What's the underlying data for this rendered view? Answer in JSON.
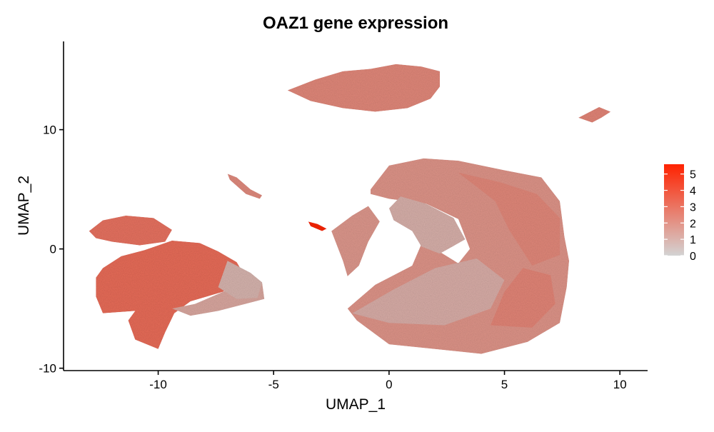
{
  "chart_data": {
    "type": "scatter",
    "title": "OAZ1 gene expression",
    "xlabel": "UMAP_1",
    "ylabel": "UMAP_2",
    "xlim": [
      -14.1,
      11.2
    ],
    "ylim": [
      -10.2,
      17.4
    ],
    "x_ticks": [
      -10,
      -5,
      0,
      5,
      10
    ],
    "x_tick_labels": [
      "-10",
      "-5",
      "0",
      "5",
      "10"
    ],
    "y_ticks": [
      -10,
      0,
      10
    ],
    "y_tick_labels": [
      "-10",
      "0",
      "10"
    ],
    "grid": false,
    "color_scale": {
      "min": 0,
      "max": 5.6,
      "low_color": "#d3d3d3",
      "high_color": "#ff2200",
      "ticks": [
        0,
        1,
        2,
        3,
        4,
        5
      ],
      "tick_labels": [
        "0",
        "1",
        "2",
        "3",
        "4",
        "5"
      ],
      "placement": "right"
    },
    "clusters": [
      {
        "shape": [
          [
            -4.4,
            13.3
          ],
          [
            -3.2,
            14.2
          ],
          [
            -2.0,
            14.9
          ],
          [
            -0.8,
            15.1
          ],
          [
            0.3,
            15.5
          ],
          [
            1.4,
            15.3
          ],
          [
            2.2,
            14.9
          ],
          [
            2.2,
            13.6
          ],
          [
            1.8,
            12.6
          ],
          [
            0.8,
            11.8
          ],
          [
            -0.6,
            11.5
          ],
          [
            -2.0,
            11.8
          ],
          [
            -3.4,
            12.4
          ]
        ],
        "expr": 2.3
      },
      {
        "shape": [
          [
            8.2,
            11.0
          ],
          [
            8.7,
            11.5
          ],
          [
            9.1,
            11.9
          ],
          [
            9.6,
            11.5
          ],
          [
            9.2,
            11.0
          ],
          [
            8.8,
            10.6
          ]
        ],
        "expr": 2.4
      },
      {
        "shape": [
          [
            -7.0,
            6.3
          ],
          [
            -6.6,
            6.0
          ],
          [
            -6.0,
            5.0
          ],
          [
            -5.5,
            4.5
          ],
          [
            -5.6,
            4.2
          ],
          [
            -6.2,
            4.6
          ],
          [
            -6.9,
            5.8
          ]
        ],
        "expr": 2.2
      },
      {
        "shape": [
          [
            -3.5,
            2.3
          ],
          [
            -3.1,
            2.1
          ],
          [
            -2.7,
            1.7
          ],
          [
            -2.9,
            1.5
          ],
          [
            -3.4,
            1.9
          ]
        ],
        "expr": 5.5
      },
      {
        "shape": [
          [
            -2.5,
            1.5
          ],
          [
            -1.6,
            2.8
          ],
          [
            -0.9,
            3.6
          ],
          [
            -0.4,
            2.3
          ],
          [
            -0.9,
            0.6
          ],
          [
            -1.3,
            -1.4
          ],
          [
            -1.8,
            -2.3
          ],
          [
            -2.0,
            -1.0
          ]
        ],
        "expr": 1.8
      },
      {
        "shape": [
          [
            -13.0,
            1.5
          ],
          [
            -12.4,
            2.4
          ],
          [
            -11.4,
            2.8
          ],
          [
            -10.2,
            2.6
          ],
          [
            -9.4,
            1.6
          ],
          [
            -9.7,
            0.6
          ],
          [
            -10.8,
            0.3
          ],
          [
            -12.0,
            0.6
          ],
          [
            -12.7,
            0.9
          ]
        ],
        "expr": 3.0
      },
      {
        "shape": [
          [
            -12.4,
            -1.6
          ],
          [
            -11.6,
            -0.6
          ],
          [
            -10.6,
            -0.1
          ],
          [
            -9.4,
            0.7
          ],
          [
            -8.2,
            0.5
          ],
          [
            -7.4,
            -0.2
          ],
          [
            -6.6,
            -1.1
          ],
          [
            -6.2,
            -2.4
          ],
          [
            -7.2,
            -3.6
          ],
          [
            -8.6,
            -4.4
          ],
          [
            -9.3,
            -5.4
          ],
          [
            -9.7,
            -7.0
          ],
          [
            -10.0,
            -8.4
          ],
          [
            -11.0,
            -7.6
          ],
          [
            -11.3,
            -6.0
          ],
          [
            -11.0,
            -5.2
          ],
          [
            -12.4,
            -5.4
          ],
          [
            -12.7,
            -4.0
          ],
          [
            -12.7,
            -2.4
          ]
        ],
        "expr": 3.2
      },
      {
        "shape": [
          [
            -9.4,
            -5.0
          ],
          [
            -8.4,
            -4.6
          ],
          [
            -7.2,
            -3.6
          ],
          [
            -6.0,
            -2.6
          ],
          [
            -5.5,
            -2.8
          ],
          [
            -5.4,
            -4.2
          ],
          [
            -6.2,
            -4.6
          ],
          [
            -7.4,
            -5.2
          ],
          [
            -8.6,
            -5.6
          ]
        ],
        "expr": 1.3
      },
      {
        "shape": [
          [
            -7.0,
            -1.0
          ],
          [
            -6.0,
            -2.0
          ],
          [
            -5.5,
            -2.8
          ],
          [
            -5.7,
            -4.1
          ],
          [
            -6.6,
            -4.2
          ],
          [
            -7.4,
            -3.2
          ]
        ],
        "expr": 0.9
      },
      {
        "shape": [
          [
            -0.8,
            5.0
          ],
          [
            0.0,
            7.0
          ],
          [
            1.5,
            7.6
          ],
          [
            3.0,
            7.4
          ],
          [
            5.0,
            6.6
          ],
          [
            6.6,
            6.0
          ],
          [
            7.4,
            4.0
          ],
          [
            7.6,
            1.0
          ],
          [
            7.8,
            -1.0
          ],
          [
            7.7,
            -3.2
          ],
          [
            7.4,
            -6.2
          ],
          [
            6.0,
            -7.8
          ],
          [
            4.0,
            -8.8
          ],
          [
            2.0,
            -8.4
          ],
          [
            0.0,
            -8.0
          ],
          [
            -1.4,
            -6.0
          ],
          [
            -1.8,
            -5.0
          ],
          [
            -0.6,
            -3.0
          ],
          [
            1.0,
            -1.4
          ],
          [
            1.4,
            0.4
          ],
          [
            2.0,
            0.0
          ],
          [
            3.0,
            -1.2
          ],
          [
            3.5,
            0.0
          ],
          [
            3.0,
            2.5
          ],
          [
            1.6,
            3.8
          ],
          [
            0.0,
            4.2
          ],
          [
            -0.8,
            4.6
          ]
        ],
        "expr": 1.9
      },
      {
        "shape": [
          [
            0.5,
            4.4
          ],
          [
            1.6,
            3.8
          ],
          [
            2.8,
            2.6
          ],
          [
            3.3,
            0.8
          ],
          [
            2.2,
            -0.4
          ],
          [
            1.4,
            0.2
          ],
          [
            1.0,
            1.5
          ],
          [
            0.2,
            2.4
          ],
          [
            0.0,
            3.4
          ]
        ],
        "expr": 1.0
      },
      {
        "shape": [
          [
            -1.6,
            -5.4
          ],
          [
            0.2,
            -3.4
          ],
          [
            2.0,
            -1.6
          ],
          [
            3.8,
            -0.8
          ],
          [
            5.0,
            -2.6
          ],
          [
            4.4,
            -5.0
          ],
          [
            2.4,
            -6.4
          ],
          [
            0.0,
            -6.2
          ]
        ],
        "expr": 1.1
      },
      {
        "shape": [
          [
            3.0,
            6.4
          ],
          [
            4.8,
            5.6
          ],
          [
            6.4,
            4.6
          ],
          [
            7.4,
            2.6
          ],
          [
            7.4,
            -0.5
          ],
          [
            6.2,
            -1.4
          ],
          [
            5.2,
            1.6
          ],
          [
            4.6,
            4.0
          ]
        ],
        "expr": 2.3
      },
      {
        "shape": [
          [
            4.4,
            -6.4
          ],
          [
            6.2,
            -6.6
          ],
          [
            7.2,
            -4.6
          ],
          [
            7.0,
            -2.2
          ],
          [
            5.8,
            -1.6
          ],
          [
            5.0,
            -3.6
          ]
        ],
        "expr": 2.4
      }
    ]
  }
}
